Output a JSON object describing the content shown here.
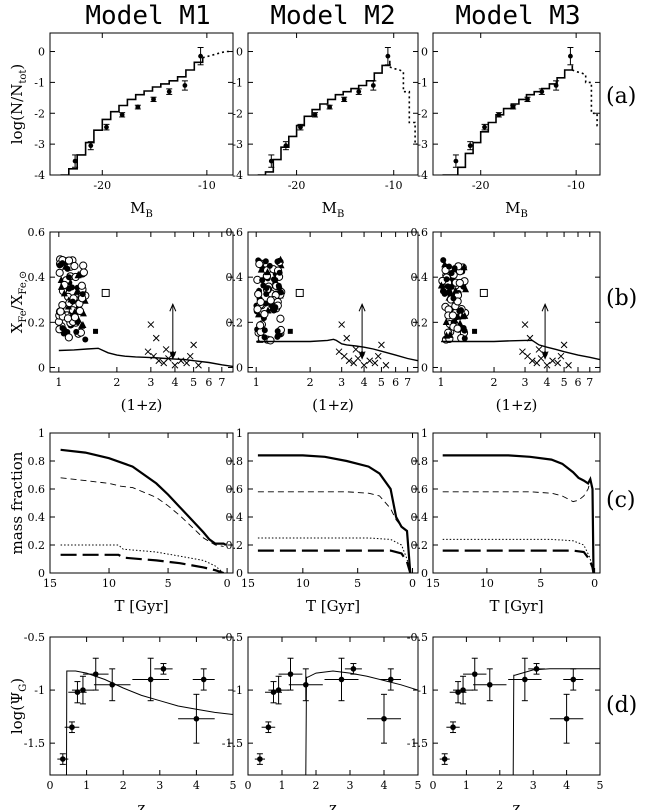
{
  "figure": {
    "columns": [
      "Model M1",
      "Model M2",
      "Model M3"
    ],
    "row_tags": [
      "(a)",
      "(b)",
      "(c)",
      "(d)"
    ]
  },
  "chart_data": [
    {
      "row": "a",
      "type": "line",
      "ylabel": "log(N/N",
      "ylabel_sub": "tot",
      "ylabel_end": ")",
      "xlabel": "M",
      "xlabel_sub": "B",
      "xlim": [
        -25,
        -7.5
      ],
      "ylim": [
        -4,
        0.6
      ],
      "xticks": [
        -20,
        -10
      ],
      "yticks": [
        -4,
        -3,
        -2,
        -1,
        0
      ],
      "observed": {
        "x": [
          -22.6,
          -21.1,
          -19.6,
          -18.1,
          -16.6,
          -15.1,
          -13.6,
          -12.1,
          -10.6
        ],
        "y": [
          -3.55,
          -3.05,
          -2.45,
          -2.05,
          -1.8,
          -1.55,
          -1.3,
          -1.1,
          -0.15
        ],
        "yerr": [
          0.2,
          0.13,
          0.09,
          0.07,
          0.06,
          0.07,
          0.09,
          0.15,
          0.28
        ]
      },
      "series": [
        {
          "x": [
            -24,
            -23.2,
            -22.4,
            -21.6,
            -20.8,
            -20.0,
            -19.2,
            -18.4,
            -17.6,
            -16.8,
            -16.0,
            -15.2,
            -14.4,
            -13.6,
            -12.8,
            -12.0,
            -11.2,
            -10.4
          ],
          "y": [
            -4.0,
            -3.8,
            -3.35,
            -2.95,
            -2.55,
            -2.2,
            -1.95,
            -1.75,
            -1.55,
            -1.4,
            -1.28,
            -1.15,
            -1.05,
            -0.95,
            -0.82,
            -0.6,
            -0.35,
            -0.2
          ]
        },
        {
          "x": [
            -24,
            -23.2,
            -22.4,
            -21.6,
            -20.8,
            -20.0,
            -19.2,
            -18.4,
            -17.6,
            -16.8,
            -16.0,
            -15.2,
            -14.4,
            -13.6,
            -12.8,
            -12.0,
            -11.2,
            -10.4
          ],
          "y": [
            -4.0,
            -3.9,
            -3.5,
            -3.1,
            -2.75,
            -2.4,
            -2.1,
            -1.88,
            -1.7,
            -1.55,
            -1.4,
            -1.3,
            -1.2,
            -1.1,
            -0.95,
            -0.7,
            -0.45,
            -0.3
          ]
        },
        {
          "x": [
            -24,
            -23.2,
            -22.4,
            -21.6,
            -20.8,
            -20.0,
            -19.2,
            -18.4,
            -17.6,
            -16.8,
            -16.0,
            -15.2,
            -14.4,
            -13.6,
            -12.8,
            -12.0,
            -11.2,
            -10.4
          ],
          "y": [
            -4.0,
            -4.0,
            -3.75,
            -3.3,
            -2.95,
            -2.6,
            -2.3,
            -2.05,
            -1.85,
            -1.7,
            -1.55,
            -1.4,
            -1.3,
            -1.2,
            -1.05,
            -0.85,
            -0.6,
            -0.45
          ]
        }
      ],
      "tail": [
        {
          "x": [
            -10.4,
            -9.5,
            -8.8,
            -8.2,
            -7.6
          ],
          "y": [
            -0.2,
            -0.12,
            -0.05,
            0.0,
            0.0
          ]
        },
        {
          "x": [
            -10.4,
            -10.0,
            -9.4,
            -9.0,
            -9.0,
            -8.4,
            -8.4,
            -7.8,
            -7.8,
            -7.6
          ],
          "y": [
            -0.5,
            -0.55,
            -0.6,
            -0.65,
            -1.3,
            -1.3,
            -2.3,
            -2.3,
            -3.0,
            -3.0
          ]
        },
        {
          "x": [
            -10.4,
            -10.0,
            -9.4,
            -9.0,
            -9.0,
            -8.4,
            -8.4,
            -7.8,
            -7.8,
            -7.6
          ],
          "y": [
            -0.6,
            -0.65,
            -0.7,
            -0.75,
            -1.0,
            -1.0,
            -2.0,
            -2.0,
            -2.4,
            -2.4
          ]
        }
      ]
    },
    {
      "row": "b",
      "type": "scatter",
      "ylabel": "X",
      "ylabel_sub": "Fe",
      "ylabel_mid": "/X",
      "ylabel_sub2": "Fe,⊙",
      "xlabel": "(1+z)",
      "xscale": "log",
      "xlim": [
        0.9,
        8
      ],
      "ylim": [
        -0.02,
        0.6
      ],
      "xticks": [
        1,
        2,
        3,
        4,
        5,
        6,
        7
      ],
      "yticks": [
        0,
        0.2,
        0.4,
        0.6
      ],
      "ytick_labels": [
        "0",
        "0.2",
        "0.4",
        "0.6"
      ],
      "solar_arrow": {
        "x": 3.9,
        "y_top": 0.28,
        "y_bottom": 0.04
      },
      "series": [
        {
          "x": [
            1.0,
            1.2,
            1.4,
            1.6,
            1.8,
            2.0,
            2.2,
            2.5,
            2.8,
            3.2,
            3.6,
            4.0,
            4.5,
            5.0,
            6.0,
            7.0,
            8.0
          ],
          "y": [
            0.075,
            0.078,
            0.082,
            0.085,
            0.065,
            0.055,
            0.05,
            0.047,
            0.045,
            0.043,
            0.04,
            0.037,
            0.035,
            0.03,
            0.022,
            0.012,
            0.005
          ]
        },
        {
          "x": [
            1.0,
            1.5,
            2.0,
            2.5,
            2.7,
            2.8,
            3.0,
            3.2,
            3.6,
            4.0,
            4.5,
            5.0,
            6.0,
            7.0,
            8.0
          ],
          "y": [
            0.115,
            0.115,
            0.115,
            0.12,
            0.125,
            0.12,
            0.105,
            0.1,
            0.095,
            0.09,
            0.082,
            0.072,
            0.055,
            0.04,
            0.03
          ]
        },
        {
          "x": [
            1.0,
            1.5,
            2.0,
            2.5,
            3.0,
            3.3,
            3.6,
            4.0,
            4.5,
            5.0,
            6.0,
            7.0,
            8.0
          ],
          "y": [
            0.115,
            0.115,
            0.115,
            0.118,
            0.12,
            0.12,
            0.1,
            0.09,
            0.08,
            0.07,
            0.055,
            0.045,
            0.035
          ]
        }
      ],
      "crosses": {
        "x": [
          3.0,
          2.9,
          3.1,
          3.3,
          3.5,
          3.7,
          4.0,
          4.3,
          4.6,
          5.0,
          5.3,
          3.2,
          3.6,
          4.8
        ],
        "y": [
          0.19,
          0.07,
          0.05,
          0.03,
          0.02,
          0.04,
          0.01,
          0.03,
          0.02,
          0.1,
          0.01,
          0.13,
          0.08,
          0.05
        ]
      },
      "open_squares": {
        "x": [
          1.75
        ],
        "y": [
          0.33
        ]
      },
      "filled_squares": {
        "x": [
          1.55
        ],
        "y": [
          0.16
        ]
      }
    },
    {
      "row": "c",
      "type": "line",
      "ylabel": "mass fraction",
      "xlabel": "T [Gyr]",
      "xlim": [
        15,
        -0.5
      ],
      "ylim": [
        0,
        1
      ],
      "xticks": [
        15,
        10,
        5,
        0
      ],
      "yticks": [
        0,
        0.2,
        0.4,
        0.6,
        0.8,
        1
      ],
      "ytick_labels": [
        "0",
        "0.2",
        "0.4",
        "0.6",
        "0.8",
        "1"
      ],
      "series": [
        {
          "solid": {
            "x": [
              14.1,
              12,
              10,
              8,
              6,
              5,
              4,
              3,
              2,
              1.5,
              1.0,
              0.6,
              0.3,
              0.1
            ],
            "y": [
              0.88,
              0.86,
              0.82,
              0.76,
              0.64,
              0.56,
              0.47,
              0.38,
              0.29,
              0.24,
              0.21,
              0.21,
              0.21,
              0.2
            ]
          },
          "dashed": {
            "x": [
              14.1,
              12,
              10,
              9,
              8,
              6,
              5,
              4,
              3,
              2,
              1,
              0.3
            ],
            "y": [
              0.68,
              0.66,
              0.64,
              0.62,
              0.61,
              0.54,
              0.48,
              0.41,
              0.33,
              0.25,
              0.2,
              0.19
            ]
          },
          "dotted": {
            "x": [
              14.1,
              12,
              10,
              9.2,
              8.8,
              6,
              4,
              2,
              1,
              0.3
            ],
            "y": [
              0.2,
              0.2,
              0.2,
              0.2,
              0.17,
              0.15,
              0.12,
              0.09,
              0.05,
              0.0
            ]
          },
          "longdash": {
            "x": [
              14.1,
              12,
              10,
              9.2,
              8.8,
              6,
              4,
              2,
              1,
              0.3
            ],
            "y": [
              0.13,
              0.13,
              0.13,
              0.13,
              0.11,
              0.09,
              0.07,
              0.04,
              0.02,
              0.0
            ]
          }
        },
        {
          "solid": {
            "x": [
              14.1,
              10,
              8,
              6,
              5,
              4,
              3,
              2,
              1.5,
              1.0,
              0.5,
              0.2
            ],
            "y": [
              0.84,
              0.84,
              0.83,
              0.8,
              0.78,
              0.76,
              0.71,
              0.6,
              0.4,
              0.33,
              0.3,
              0.0
            ]
          },
          "dashed": {
            "x": [
              14.1,
              10,
              8,
              6,
              4,
              3,
              2,
              1.5,
              1.0,
              0.5,
              0.2
            ],
            "y": [
              0.58,
              0.58,
              0.58,
              0.58,
              0.57,
              0.55,
              0.46,
              0.38,
              0.33,
              0.3,
              0.0
            ]
          },
          "dotted": {
            "x": [
              14.1,
              10,
              8,
              6,
              4,
              2,
              1.0,
              0.5,
              0.2
            ],
            "y": [
              0.25,
              0.25,
              0.25,
              0.25,
              0.25,
              0.24,
              0.2,
              0.1,
              0.0
            ]
          },
          "longdash": {
            "x": [
              14.1,
              10,
              8,
              6,
              4,
              2,
              1.0,
              0.5,
              0.2
            ],
            "y": [
              0.16,
              0.16,
              0.16,
              0.16,
              0.16,
              0.16,
              0.14,
              0.08,
              0.0
            ]
          }
        },
        {
          "solid": {
            "x": [
              14.1,
              10,
              8,
              6,
              4,
              3,
              2,
              1.5,
              1.0,
              0.6,
              0.4,
              0.2,
              0.1
            ],
            "y": [
              0.84,
              0.84,
              0.84,
              0.83,
              0.81,
              0.78,
              0.72,
              0.68,
              0.66,
              0.64,
              0.67,
              0.6,
              0.0
            ]
          },
          "dashed": {
            "x": [
              14.1,
              10,
              8,
              6,
              4,
              3,
              2,
              1.5,
              1.0,
              0.6,
              0.4,
              0.2,
              0.1
            ],
            "y": [
              0.58,
              0.58,
              0.58,
              0.58,
              0.57,
              0.55,
              0.51,
              0.52,
              0.55,
              0.6,
              0.66,
              0.6,
              0.0
            ]
          },
          "dotted": {
            "x": [
              14.1,
              10,
              8,
              6,
              4,
              2,
              1.0,
              0.5,
              0.2,
              0.1
            ],
            "y": [
              0.24,
              0.24,
              0.24,
              0.24,
              0.24,
              0.23,
              0.2,
              0.12,
              0.05,
              0.0
            ]
          },
          "longdash": {
            "x": [
              14.1,
              10,
              8,
              6,
              4,
              2,
              1.0,
              0.5,
              0.2,
              0.1
            ],
            "y": [
              0.16,
              0.16,
              0.16,
              0.16,
              0.16,
              0.16,
              0.15,
              0.1,
              0.04,
              0.0
            ]
          }
        }
      ]
    },
    {
      "row": "d",
      "type": "scatter",
      "ylabel": "log(Ψ",
      "ylabel_sub": "G",
      "ylabel_end": ")",
      "xlabel": "z",
      "xlim": [
        0,
        5
      ],
      "ylim": [
        -1.8,
        -0.5
      ],
      "xticks": [
        0,
        1,
        2,
        3,
        4,
        5
      ],
      "yticks": [
        -1.5,
        -1,
        -0.5
      ],
      "ytick_labels": [
        "-1.5",
        "-1",
        "-0.5"
      ],
      "observed": {
        "x": [
          0.35,
          0.6,
          0.75,
          0.9,
          1.25,
          1.7,
          2.75,
          3.1,
          4.0,
          4.2
        ],
        "xerr": [
          0.15,
          0.2,
          0.25,
          0.3,
          0.35,
          0.5,
          0.5,
          0.25,
          0.5,
          0.3
        ],
        "y": [
          -1.65,
          -1.35,
          -1.02,
          -1.0,
          -0.85,
          -0.95,
          -0.9,
          -0.8,
          -1.27,
          -0.9
        ],
        "yerr": [
          0.05,
          0.05,
          0.1,
          0.13,
          0.15,
          0.15,
          0.2,
          0.05,
          0.23,
          0.1
        ]
      },
      "series": [
        {
          "x": [
            0.4,
            0.45,
            0.46,
            0.7,
            1.0,
            1.5,
            2.0,
            2.5,
            3.0,
            3.5,
            4.0,
            4.5,
            5.0
          ],
          "y": [
            -1.8,
            -1.8,
            -0.82,
            -0.82,
            -0.84,
            -0.9,
            -0.98,
            -1.05,
            -1.1,
            -1.15,
            -1.18,
            -1.21,
            -1.23
          ]
        },
        {
          "x": [
            1.7,
            1.72,
            1.75,
            2.0,
            2.5,
            3.0,
            3.5,
            4.0,
            4.5,
            5.0
          ],
          "y": [
            -1.8,
            -0.88,
            -0.88,
            -0.84,
            -0.82,
            -0.84,
            -0.87,
            -0.91,
            -0.95,
            -1.0
          ]
        },
        {
          "x": [
            2.4,
            2.42,
            2.45,
            3.0,
            3.5,
            4.0,
            4.5,
            5.0
          ],
          "y": [
            -1.8,
            -0.86,
            -0.86,
            -0.81,
            -0.8,
            -0.8,
            -0.8,
            -0.8
          ]
        }
      ]
    }
  ]
}
